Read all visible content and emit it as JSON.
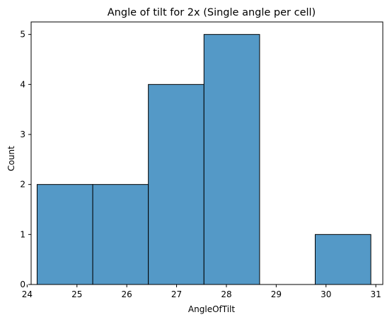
{
  "chart_data": {
    "type": "bar",
    "title": "Angle of tilt for 2x (Single angle per cell)",
    "xlabel": "AngleOfTilt",
    "ylabel": "Count",
    "bins": [
      {
        "x0": 24.2,
        "x1": 25.317,
        "count": 2
      },
      {
        "x0": 25.317,
        "x1": 26.433,
        "count": 2
      },
      {
        "x0": 26.433,
        "x1": 27.55,
        "count": 4
      },
      {
        "x0": 27.55,
        "x1": 28.667,
        "count": 5
      },
      {
        "x0": 28.667,
        "x1": 29.783,
        "count": 0
      },
      {
        "x0": 29.783,
        "x1": 30.9,
        "count": 1
      }
    ],
    "xlim": [
      24.08,
      31.14
    ],
    "ylim": [
      0,
      5.25
    ],
    "xticks": [
      24,
      25,
      26,
      27,
      28,
      29,
      30,
      31
    ],
    "yticks": [
      0,
      1,
      2,
      3,
      4,
      5
    ],
    "bar_color": "#5499c7",
    "edge_color": "#000000",
    "grid": false
  }
}
